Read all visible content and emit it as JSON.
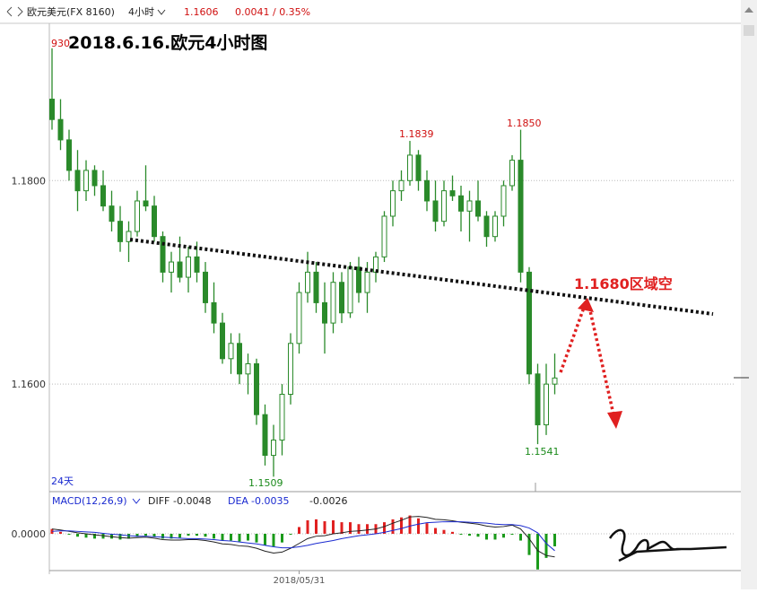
{
  "chart_data": {
    "type": "candlestick",
    "header": {
      "symbol": "欧元美元(FX 8160)",
      "period": "4小时",
      "change": "0.0041 / 0.35%"
    },
    "title": "2018.6.16.欧元4小时图",
    "corner_label": "930",
    "span_label": "24天",
    "annotations": [
      "1.1839",
      "1.1850",
      "1.1509",
      "1.1541",
      "1.1680区域空"
    ],
    "ylim": [
      1.1497,
      1.1951
    ],
    "yticks": [
      {
        "value": 1.18,
        "label": "1.1800"
      },
      {
        "value": 1.16,
        "label": "1.1600"
      }
    ],
    "up_color": "#2a8a2a",
    "down_color": "#2a8a2a",
    "categories": [
      null,
      null,
      null,
      null,
      null,
      null,
      null,
      null,
      null,
      null,
      null,
      null,
      null,
      null,
      null,
      null,
      null,
      null,
      null,
      null,
      null,
      null,
      null,
      null,
      null,
      null,
      null,
      null,
      null,
      "2018/05/31",
      null,
      null,
      null,
      null,
      null,
      null,
      null,
      null,
      null,
      null,
      null,
      null,
      null,
      null,
      null,
      null,
      null,
      null,
      null,
      null,
      null,
      null,
      null,
      null,
      null,
      null,
      null,
      null,
      null,
      null
    ],
    "ohlc": [
      [
        1.188,
        1.193,
        1.185,
        1.186
      ],
      [
        1.186,
        1.188,
        1.183,
        1.184
      ],
      [
        1.184,
        1.185,
        1.18,
        1.181
      ],
      [
        1.181,
        1.183,
        1.177,
        1.179
      ],
      [
        1.179,
        1.182,
        1.178,
        1.181
      ],
      [
        1.181,
        1.1815,
        1.1785,
        1.1795
      ],
      [
        1.1795,
        1.181,
        1.177,
        1.1775
      ],
      [
        1.1775,
        1.179,
        1.175,
        1.176
      ],
      [
        1.176,
        1.1775,
        1.173,
        1.174
      ],
      [
        1.174,
        1.176,
        1.172,
        1.175
      ],
      [
        1.175,
        1.179,
        1.1745,
        1.178
      ],
      [
        1.178,
        1.1815,
        1.177,
        1.1775
      ],
      [
        1.1775,
        1.1785,
        1.174,
        1.1745
      ],
      [
        1.1745,
        1.175,
        1.17,
        1.171
      ],
      [
        1.171,
        1.173,
        1.169,
        1.172
      ],
      [
        1.172,
        1.1745,
        1.17,
        1.1705
      ],
      [
        1.1705,
        1.1735,
        1.169,
        1.1725
      ],
      [
        1.1725,
        1.174,
        1.17,
        1.171
      ],
      [
        1.171,
        1.172,
        1.167,
        1.168
      ],
      [
        1.168,
        1.17,
        1.165,
        1.166
      ],
      [
        1.166,
        1.167,
        1.162,
        1.1625
      ],
      [
        1.1625,
        1.165,
        1.161,
        1.164
      ],
      [
        1.164,
        1.165,
        1.16,
        1.161
      ],
      [
        1.161,
        1.163,
        1.159,
        1.162
      ],
      [
        1.162,
        1.1625,
        1.156,
        1.157
      ],
      [
        1.157,
        1.158,
        1.152,
        1.153
      ],
      [
        1.153,
        1.156,
        1.1509,
        1.1545
      ],
      [
        1.1545,
        1.16,
        1.153,
        1.159
      ],
      [
        1.159,
        1.165,
        1.158,
        1.164
      ],
      [
        1.164,
        1.17,
        1.163,
        1.169
      ],
      [
        1.169,
        1.173,
        1.168,
        1.171
      ],
      [
        1.171,
        1.172,
        1.167,
        1.168
      ],
      [
        1.168,
        1.17,
        1.163,
        1.166
      ],
      [
        1.166,
        1.171,
        1.165,
        1.17
      ],
      [
        1.17,
        1.171,
        1.166,
        1.167
      ],
      [
        1.167,
        1.172,
        1.1665,
        1.1715
      ],
      [
        1.1715,
        1.1725,
        1.168,
        1.169
      ],
      [
        1.169,
        1.172,
        1.167,
        1.171
      ],
      [
        1.171,
        1.173,
        1.17,
        1.1725
      ],
      [
        1.1725,
        1.177,
        1.172,
        1.1765
      ],
      [
        1.1765,
        1.18,
        1.1755,
        1.179
      ],
      [
        1.179,
        1.181,
        1.178,
        1.18
      ],
      [
        1.18,
        1.1839,
        1.1795,
        1.1825
      ],
      [
        1.1825,
        1.183,
        1.179,
        1.18
      ],
      [
        1.18,
        1.181,
        1.177,
        1.178
      ],
      [
        1.178,
        1.18,
        1.175,
        1.176
      ],
      [
        1.176,
        1.18,
        1.1755,
        1.179
      ],
      [
        1.179,
        1.1805,
        1.178,
        1.1785
      ],
      [
        1.1785,
        1.1795,
        1.175,
        1.177
      ],
      [
        1.177,
        1.179,
        1.174,
        1.178
      ],
      [
        1.178,
        1.18,
        1.176,
        1.1765
      ],
      [
        1.1765,
        1.177,
        1.1735,
        1.1745
      ],
      [
        1.1745,
        1.177,
        1.174,
        1.1765
      ],
      [
        1.1765,
        1.18,
        1.1755,
        1.1795
      ],
      [
        1.1795,
        1.1825,
        1.179,
        1.182
      ],
      [
        1.182,
        1.185,
        1.17,
        1.171
      ],
      [
        1.171,
        1.1715,
        1.16,
        1.161
      ],
      [
        1.161,
        1.162,
        1.1541,
        1.156
      ],
      [
        1.156,
        1.162,
        1.155,
        1.16
      ],
      [
        1.16,
        1.163,
        1.159,
        1.1606
      ]
    ],
    "macd": {
      "name": "MACD(12,26,9)",
      "diff_name": "DIFF",
      "dea_name": "DEA",
      "ylim": [
        -0.008,
        0.008
      ],
      "yticks": [
        {
          "value": 0,
          "label": "0.0000"
        }
      ],
      "up_color": "#e02020",
      "down_color": "#1a9a1a",
      "diff_color": "#222222",
      "dea_color": "#1a2ad0",
      "diff": [
        0.001,
        0.0008,
        0.0005,
        0.0002,
        0.0,
        -0.0002,
        -0.0004,
        -0.0006,
        -0.0008,
        -0.0009,
        -0.0008,
        -0.0007,
        -0.0009,
        -0.0012,
        -0.0013,
        -0.0013,
        -0.0012,
        -0.0012,
        -0.0014,
        -0.0017,
        -0.0021,
        -0.0022,
        -0.0025,
        -0.0026,
        -0.003,
        -0.0036,
        -0.004,
        -0.0038,
        -0.003,
        -0.002,
        -0.001,
        -0.0005,
        -0.0004,
        0.0,
        0.0002,
        0.0005,
        0.0006,
        0.0008,
        0.001,
        0.0015,
        0.0022,
        0.0028,
        0.0035,
        0.0036,
        0.0034,
        0.003,
        0.0029,
        0.0027,
        0.0024,
        0.0022,
        0.002,
        0.0016,
        0.0014,
        0.0015,
        0.0018,
        0.001,
        -0.001,
        -0.0035,
        -0.0045,
        -0.0048
      ],
      "dea": [
        0.0005,
        0.0006,
        0.0006,
        0.0005,
        0.0004,
        0.0003,
        0.0001,
        -0.0001,
        -0.0002,
        -0.0004,
        -0.0005,
        -0.0005,
        -0.0006,
        -0.0007,
        -0.0008,
        -0.0009,
        -0.001,
        -0.001,
        -0.0011,
        -0.0012,
        -0.0014,
        -0.0015,
        -0.0017,
        -0.0019,
        -0.0021,
        -0.0024,
        -0.0027,
        -0.0029,
        -0.0029,
        -0.0027,
        -0.0024,
        -0.002,
        -0.0017,
        -0.0014,
        -0.001,
        -0.0007,
        -0.0004,
        -0.0002,
        0.0,
        0.0003,
        0.0007,
        0.0011,
        0.0016,
        0.002,
        0.0023,
        0.0024,
        0.0025,
        0.0025,
        0.0025,
        0.0024,
        0.0023,
        0.0022,
        0.002,
        0.0019,
        0.0019,
        0.0017,
        0.0012,
        0.0002,
        -0.002,
        -0.0035
      ],
      "hist": [
        0.001,
        0.0004,
        -0.0002,
        -0.0006,
        -0.0008,
        -0.001,
        -0.001,
        -0.001,
        -0.0012,
        -0.001,
        -0.0006,
        -0.0004,
        -0.0006,
        -0.001,
        -0.001,
        -0.0008,
        -0.0004,
        -0.0004,
        -0.0006,
        -0.001,
        -0.0014,
        -0.0014,
        -0.0016,
        -0.0014,
        -0.0018,
        -0.0024,
        -0.0026,
        -0.0018,
        -0.0002,
        0.0014,
        0.0028,
        0.003,
        0.0026,
        0.0028,
        0.0024,
        0.0024,
        0.002,
        0.002,
        0.002,
        0.0024,
        0.003,
        0.0034,
        0.0038,
        0.0032,
        0.0022,
        0.0012,
        0.0008,
        0.0004,
        -0.0002,
        -0.0004,
        -0.0006,
        -0.0012,
        -0.0012,
        -0.0008,
        -0.0002,
        -0.0014,
        -0.0044,
        -0.0074,
        -0.005,
        -0.0026
      ]
    }
  }
}
